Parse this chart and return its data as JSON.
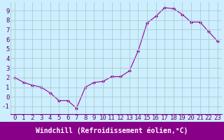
{
  "x": [
    0,
    1,
    2,
    3,
    4,
    5,
    6,
    7,
    8,
    9,
    10,
    11,
    12,
    13,
    14,
    15,
    16,
    17,
    18,
    19,
    20,
    21,
    22,
    23
  ],
  "y": [
    2.0,
    1.5,
    1.2,
    1.0,
    0.4,
    -0.4,
    -0.4,
    -1.2,
    1.0,
    1.5,
    1.6,
    2.1,
    2.1,
    2.7,
    4.8,
    7.7,
    8.4,
    9.3,
    9.2,
    8.6,
    7.8,
    7.8,
    6.8,
    5.8
  ],
  "line_color": "#990099",
  "marker": "D",
  "marker_size": 2,
  "bg_color": "#cceeff",
  "grid_color": "#aacccc",
  "xlabel": "Windchill (Refroidissement éolien,°C)",
  "xlabel_color": "#ffffff",
  "xlabel_bg": "#880088",
  "ylabel_ticks": [
    -1,
    0,
    1,
    2,
    3,
    4,
    5,
    6,
    7,
    8,
    9
  ],
  "xlim": [
    -0.5,
    23.5
  ],
  "ylim": [
    -1.8,
    9.9
  ],
  "tick_fontsize": 6.5,
  "xlabel_fontsize": 7
}
